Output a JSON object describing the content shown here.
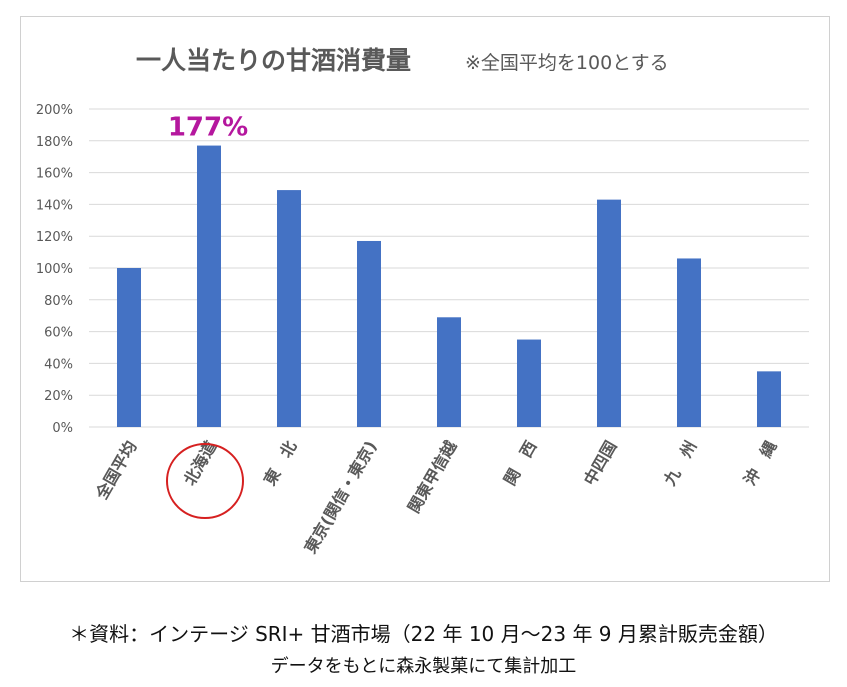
{
  "chart_data": {
    "type": "bar",
    "title": "一人当たりの甘酒消費量",
    "subtitle": "※全国平均を100とする",
    "categories": [
      "全国平均",
      "北海道",
      "東　北",
      "東京(関信・東京)",
      "関東甲信越",
      "関　西",
      "中四国",
      "九　州",
      "沖　縄"
    ],
    "values": [
      100,
      177,
      149,
      117,
      69,
      55,
      143,
      106,
      35
    ],
    "ylim": [
      0,
      200
    ],
    "yticks": [
      "0%",
      "20%",
      "40%",
      "60%",
      "80%",
      "100%",
      "120%",
      "140%",
      "160%",
      "180%",
      "200%"
    ],
    "grid": true,
    "annotation": "177%",
    "highlight_category": "北海道",
    "colors": {
      "bar": "#4472c4",
      "annotation": "#b5179e",
      "highlight_circle": "#d62020"
    }
  },
  "caption": {
    "line1": "＊資料：インテージ SRI+  甘酒市場（22 年 10 月～23 年 9 月累計販売金額）",
    "line2": "データをもとに森永製菓にて集計加工"
  }
}
